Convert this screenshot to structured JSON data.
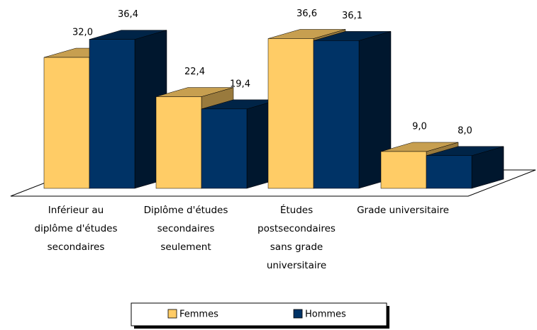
{
  "chart_data": {
    "type": "bar3d",
    "categories": [
      "Inférieur au diplôme d'études secondaires",
      "Diplôme d'études secondaires seulement",
      "Études postsecondaires sans grade universitaire",
      "Grade universitaire"
    ],
    "series": [
      {
        "name": "Femmes",
        "color": "#ffcc66",
        "values": [
          32.0,
          22.4,
          36.6,
          9.0
        ],
        "value_labels": [
          "32,0",
          "22,4",
          "36,6",
          "9,0"
        ]
      },
      {
        "name": "Hommes",
        "color": "#003366",
        "values": [
          36.4,
          19.4,
          36.1,
          8.0
        ],
        "value_labels": [
          "36,4",
          "19,4",
          "36,1",
          "8,0"
        ]
      }
    ],
    "legend": "bottom"
  }
}
